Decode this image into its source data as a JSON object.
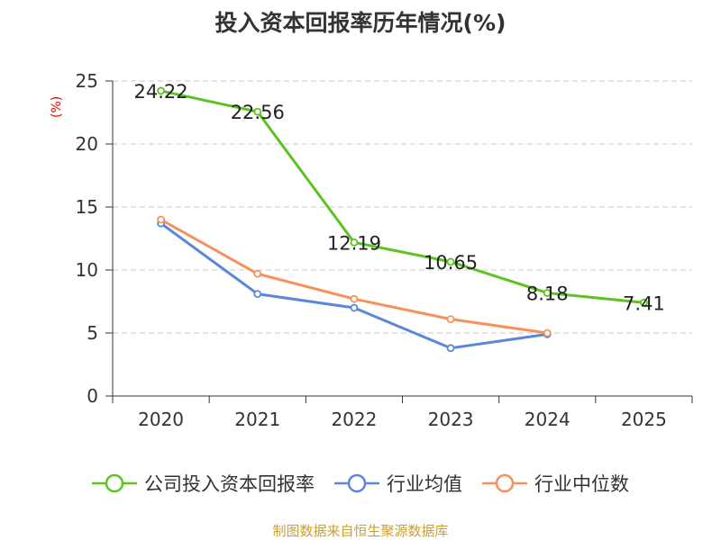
{
  "chart_data": {
    "type": "line",
    "title": "投入资本回报率历年情况(%)",
    "ylabel": "(%)",
    "xlabel": "",
    "categories": [
      "2020",
      "2021",
      "2022",
      "2023",
      "2024",
      "2025"
    ],
    "ylim": [
      0,
      25
    ],
    "yticks": [
      0,
      5,
      10,
      15,
      20,
      25
    ],
    "grid": true,
    "legend_position": "bottom",
    "series": [
      {
        "name": "公司投入资本回报率",
        "color": "#5cc31f",
        "values": [
          24.22,
          22.56,
          12.19,
          10.65,
          8.18,
          7.41
        ],
        "labels": [
          "24.22",
          "22.56",
          "12.19",
          "10.65",
          "8.18",
          "7.41"
        ]
      },
      {
        "name": "行业均值",
        "color": "#5b86db",
        "values": [
          13.7,
          8.1,
          7.0,
          3.8,
          4.9,
          null
        ]
      },
      {
        "name": "行业中位数",
        "color": "#f7915b",
        "values": [
          14.0,
          9.7,
          7.7,
          6.1,
          5.0,
          null
        ]
      }
    ]
  },
  "source": "制图数据来自恒生聚源数据库"
}
